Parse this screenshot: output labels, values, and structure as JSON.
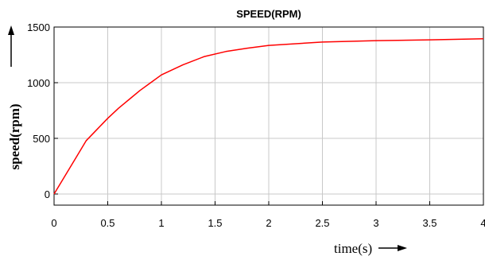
{
  "chart_data": {
    "type": "line",
    "title": "SPEED(RPM)",
    "xlabel": "time(s)",
    "ylabel": "speed(rpm)",
    "xlim": [
      0,
      4
    ],
    "ylim": [
      -100,
      1500
    ],
    "x_ticks": [
      0,
      0.5,
      1,
      1.5,
      2,
      2.5,
      3,
      3.5,
      4
    ],
    "x_tick_labels": [
      "0",
      "0.5",
      "1",
      "1.5",
      "2",
      "2.5",
      "3",
      "3.5",
      "4"
    ],
    "y_ticks": [
      0,
      500,
      1000,
      1500
    ],
    "y_tick_labels": [
      "0",
      "500",
      "1000",
      "1500"
    ],
    "grid": true,
    "line_color": "#ff0000",
    "series": [
      {
        "x": [
          0,
          0.1,
          0.2,
          0.3,
          0.4,
          0.5,
          0.6,
          0.7,
          0.8,
          0.9,
          1.0,
          1.2,
          1.4,
          1.6,
          1.8,
          2.0,
          2.5,
          3.0,
          3.5,
          4.0
        ],
        "values": [
          0,
          160,
          320,
          480,
          580,
          680,
          770,
          850,
          930,
          1000,
          1070,
          1160,
          1235,
          1280,
          1310,
          1335,
          1365,
          1378,
          1385,
          1395
        ]
      }
    ]
  }
}
